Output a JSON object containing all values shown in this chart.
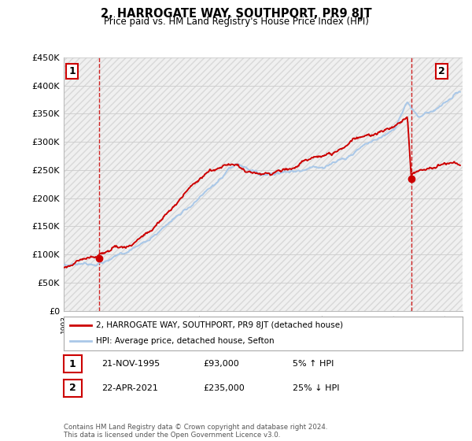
{
  "title": "2, HARROGATE WAY, SOUTHPORT, PR9 8JT",
  "subtitle": "Price paid vs. HM Land Registry's House Price Index (HPI)",
  "ylabel_ticks": [
    "£0",
    "£50K",
    "£100K",
    "£150K",
    "£200K",
    "£250K",
    "£300K",
    "£350K",
    "£400K",
    "£450K"
  ],
  "yticks": [
    0,
    50000,
    100000,
    150000,
    200000,
    250000,
    300000,
    350000,
    400000,
    450000
  ],
  "ylim": [
    0,
    450000
  ],
  "xlim_start": 1993.0,
  "xlim_end": 2025.5,
  "sale1_date": 1995.89,
  "sale1_price": 93000,
  "sale1_label": "1",
  "sale2_date": 2021.31,
  "sale2_price": 235000,
  "sale2_label": "2",
  "hpi_color": "#aac8e8",
  "price_color": "#cc0000",
  "vline_color": "#cc0000",
  "legend_line1": "2, HARROGATE WAY, SOUTHPORT, PR9 8JT (detached house)",
  "legend_line2": "HPI: Average price, detached house, Sefton",
  "table_row1": [
    "1",
    "21-NOV-1995",
    "£93,000",
    "5% ↑ HPI"
  ],
  "table_row2": [
    "2",
    "22-APR-2021",
    "£235,000",
    "25% ↓ HPI"
  ],
  "footnote": "Contains HM Land Registry data © Crown copyright and database right 2024.\nThis data is licensed under the Open Government Licence v3.0.",
  "background_color": "#ffffff"
}
